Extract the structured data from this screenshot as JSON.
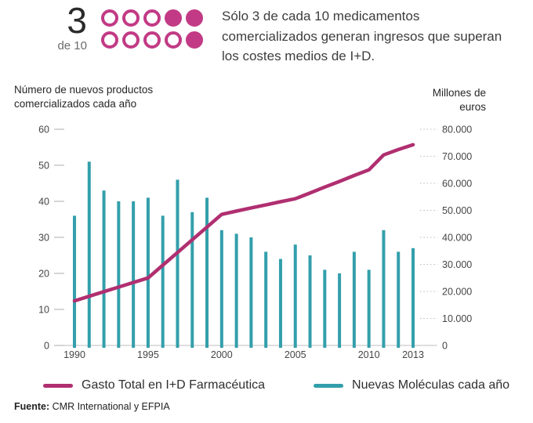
{
  "header": {
    "stat_number": "3",
    "stat_sub": "de 10",
    "dot_pattern": [
      0,
      0,
      0,
      1,
      1,
      0,
      0,
      0,
      0,
      1
    ],
    "accent_color": "#c23a85",
    "headline": "Sólo 3 de cada 10 medicamentos comercializados generan ingresos que superan los costes medios de I+D."
  },
  "axis_titles": {
    "left": "Número de nuevos productos comercializados cada año",
    "right": "Millones de euros"
  },
  "chart_data": {
    "type": "bar",
    "title": "",
    "x": [
      1990,
      1991,
      1992,
      1993,
      1994,
      1995,
      1996,
      1997,
      1998,
      1999,
      2000,
      2001,
      2002,
      2003,
      2004,
      2005,
      2006,
      2007,
      2008,
      2009,
      2010,
      2011,
      2012,
      2013
    ],
    "series": [
      {
        "name": "Nuevas Moléculas cada año",
        "type": "bar",
        "axis": "left",
        "color": "#339fab",
        "values": [
          36,
          51,
          43,
          40,
          40,
          41,
          36,
          46,
          37,
          41,
          32,
          31,
          30,
          26,
          24,
          28,
          25,
          21,
          20,
          26,
          21,
          32,
          26,
          27
        ]
      },
      {
        "name": "Gasto Total en I+D Farmacéutica",
        "type": "line",
        "axis": "right",
        "color": "#b02f70",
        "values": [
          16500,
          18200,
          19900,
          21600,
          23300,
          25000,
          29700,
          34400,
          39100,
          43800,
          48500,
          49700,
          50900,
          52000,
          53200,
          54300,
          56400,
          58600,
          60700,
          62900,
          65000,
          70500,
          72500,
          74300
        ]
      }
    ],
    "left_axis": {
      "label": "Número de nuevos productos comercializados cada año",
      "ticks": [
        0,
        10,
        20,
        30,
        40,
        50,
        60
      ],
      "range": [
        0,
        60
      ]
    },
    "right_axis": {
      "label": "Millones de euros",
      "ticks": [
        "0",
        "10.000",
        "20.000",
        "30.000",
        "40.000",
        "50.000",
        "60.000",
        "70.000",
        "80.000"
      ],
      "range": [
        0,
        80000
      ]
    },
    "x_tick_labels": [
      "1990",
      "1995",
      "2000",
      "2005",
      "2010",
      "2013"
    ],
    "grid": false,
    "legend_position": "bottom"
  },
  "legend": {
    "items": [
      {
        "label": "Gasto Total en I+D Farmacéutica",
        "color": "#b02f70"
      },
      {
        "label": "Nuevas Moléculas cada año",
        "color": "#339fab"
      }
    ]
  },
  "footer": {
    "source_label": "Fuente:",
    "source_text": "CMR International y EFPIA"
  }
}
